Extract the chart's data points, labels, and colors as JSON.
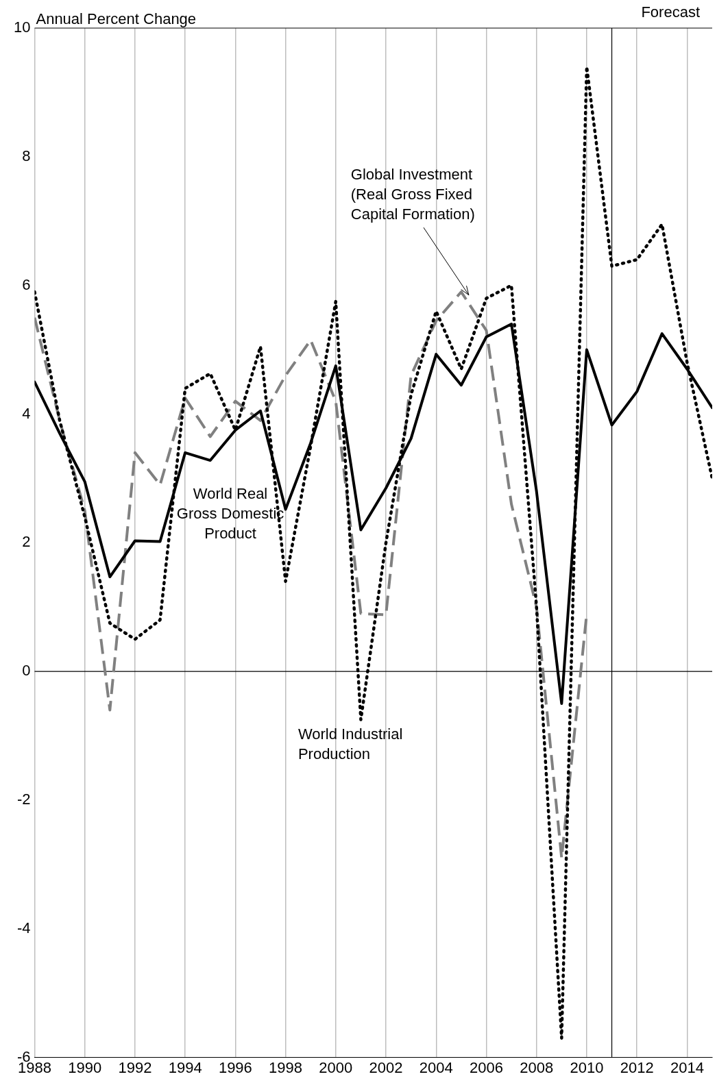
{
  "chart_data": {
    "type": "line",
    "ylabel": "Annual Percent Change",
    "x": [
      1988,
      1989,
      1990,
      1991,
      1992,
      1993,
      1994,
      1995,
      1996,
      1997,
      1998,
      1999,
      2000,
      2001,
      2002,
      2003,
      2004,
      2005,
      2006,
      2007,
      2008,
      2009,
      2010,
      2011,
      2012,
      2013,
      2014,
      2015
    ],
    "series": [
      {
        "name": "World Real Gross Domestic Product",
        "color": "#000000",
        "line_style": "solid",
        "values": [
          4.5,
          3.7,
          2.95,
          1.47,
          2.03,
          2.02,
          3.4,
          3.28,
          3.75,
          4.05,
          2.52,
          3.55,
          4.75,
          2.2,
          2.85,
          3.62,
          4.93,
          4.45,
          5.2,
          5.4,
          2.8,
          -0.5,
          5.0,
          3.83,
          4.35,
          5.25,
          4.7,
          4.1
        ]
      },
      {
        "name": "World Industrial Production",
        "color": "#000000",
        "line_style": "dotted",
        "values": [
          5.9,
          3.9,
          2.4,
          0.75,
          0.5,
          0.8,
          4.4,
          4.63,
          3.75,
          5.05,
          1.4,
          3.5,
          5.75,
          -0.75,
          2.0,
          4.3,
          5.6,
          4.7,
          5.8,
          6.0,
          1.0,
          -5.7,
          9.4,
          6.3,
          6.4,
          6.95,
          4.8,
          3.0
        ]
      },
      {
        "name": "Global Investment (Real Gross Fixed Capital Formation)",
        "color": "#808080",
        "line_style": "dashed",
        "values": [
          5.5,
          3.9,
          2.5,
          -0.6,
          3.4,
          2.9,
          4.25,
          3.65,
          4.2,
          3.9,
          4.6,
          5.15,
          4.2,
          0.9,
          0.88,
          4.6,
          5.45,
          5.9,
          5.3,
          2.6,
          1.0,
          -2.9,
          0.9,
          null,
          null,
          null,
          null,
          null
        ]
      }
    ],
    "xlim": [
      1988,
      2015
    ],
    "xticks": [
      1988,
      1990,
      1992,
      1994,
      1996,
      1998,
      2000,
      2002,
      2004,
      2006,
      2008,
      2010,
      2012,
      2014
    ],
    "ylim": [
      -6,
      10
    ],
    "yticks": [
      -6,
      -4,
      -2,
      0,
      2,
      4,
      6,
      8,
      10
    ],
    "grid": "x",
    "legend": false,
    "marker": "none",
    "ref_lines": [
      {
        "axis": "y",
        "value": 0
      },
      {
        "axis": "x",
        "value": 2011,
        "label": "Forecast"
      }
    ]
  }
}
